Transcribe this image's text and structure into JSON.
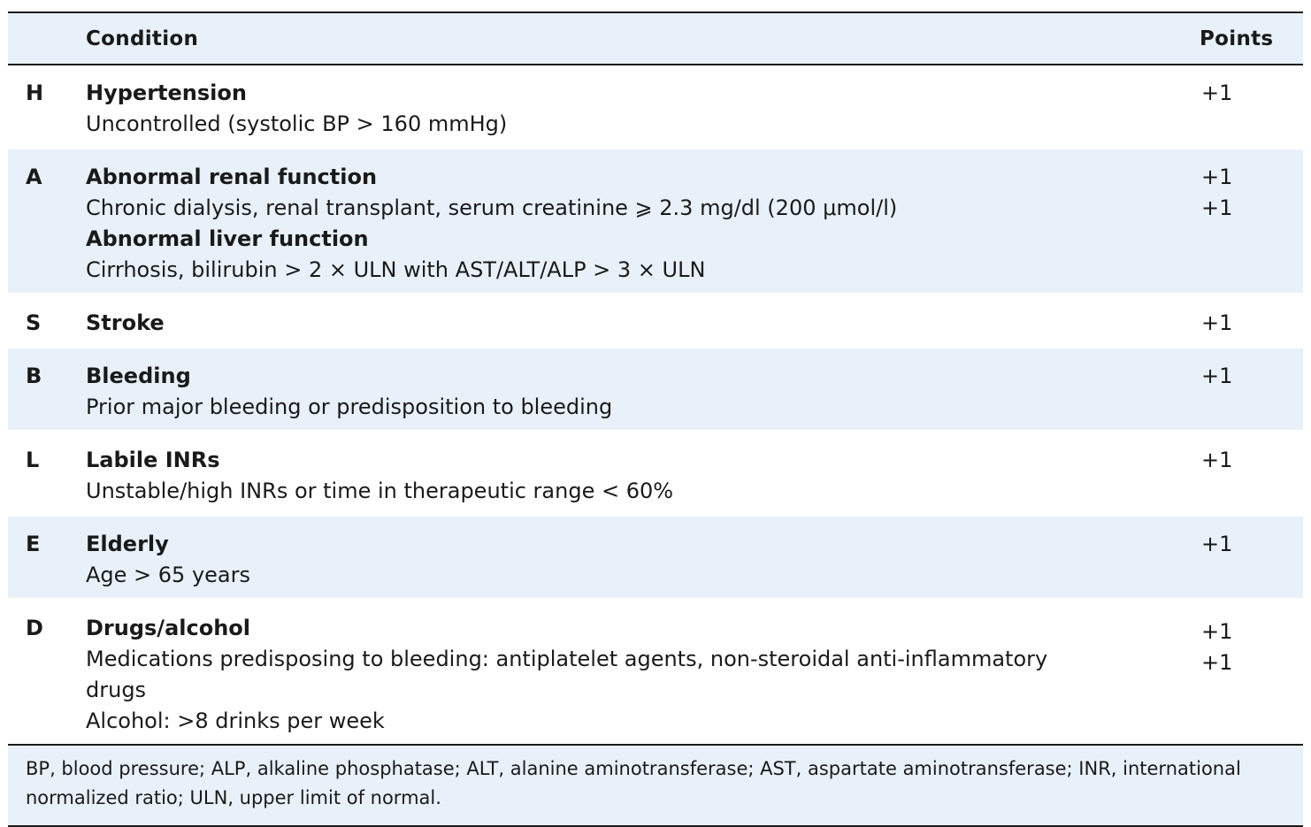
{
  "header": {
    "condition": "Condition",
    "points": "Points"
  },
  "rows": [
    {
      "letter": "H",
      "lines": [
        {
          "text": "Hypertension",
          "bold": true
        },
        {
          "text": "Uncontrolled (systolic BP > 160 mmHg)",
          "bold": false
        }
      ],
      "points": [
        "+1"
      ]
    },
    {
      "letter": "A",
      "lines": [
        {
          "text": "Abnormal renal function",
          "bold": true
        },
        {
          "text": "Chronic dialysis, renal transplant, serum creatinine ⩾ 2.3 mg/dl (200 μmol/l)",
          "bold": false
        },
        {
          "text": "Abnormal liver function",
          "bold": true
        },
        {
          "text": "Cirrhosis, bilirubin > 2 × ULN with AST/ALT/ALP > 3 × ULN",
          "bold": false
        }
      ],
      "points": [
        "+1",
        "+1"
      ]
    },
    {
      "letter": "S",
      "lines": [
        {
          "text": "Stroke",
          "bold": true
        }
      ],
      "points": [
        "+1"
      ]
    },
    {
      "letter": "B",
      "lines": [
        {
          "text": "Bleeding",
          "bold": true
        },
        {
          "text": "Prior major bleeding or predisposition to bleeding",
          "bold": false
        }
      ],
      "points": [
        "+1"
      ]
    },
    {
      "letter": "L",
      "lines": [
        {
          "text": "Labile INRs",
          "bold": true
        },
        {
          "text": "Unstable/high INRs or time in therapeutic range < 60%",
          "bold": false
        }
      ],
      "points": [
        "+1"
      ]
    },
    {
      "letter": "E",
      "lines": [
        {
          "text": "Elderly",
          "bold": true
        },
        {
          "text": "Age > 65 years",
          "bold": false
        }
      ],
      "points": [
        "+1"
      ]
    },
    {
      "letter": "D",
      "lines": [
        {
          "text": "Drugs/alcohol",
          "bold": true
        },
        {
          "text": "Medications predisposing to bleeding: antiplatelet agents, non-steroidal anti-inflammatory",
          "bold": false
        },
        {
          "text": "drugs",
          "bold": false
        },
        {
          "text": "Alcohol: >8 drinks per week",
          "bold": false
        }
      ],
      "points": [
        "+1",
        "+1"
      ]
    }
  ],
  "footnote": "BP, blood pressure; ALP, alkaline phosphatase; ALT, alanine aminotransferase; AST, aspartate aminotransferase; INR, international normalized ratio; ULN, upper limit of normal."
}
